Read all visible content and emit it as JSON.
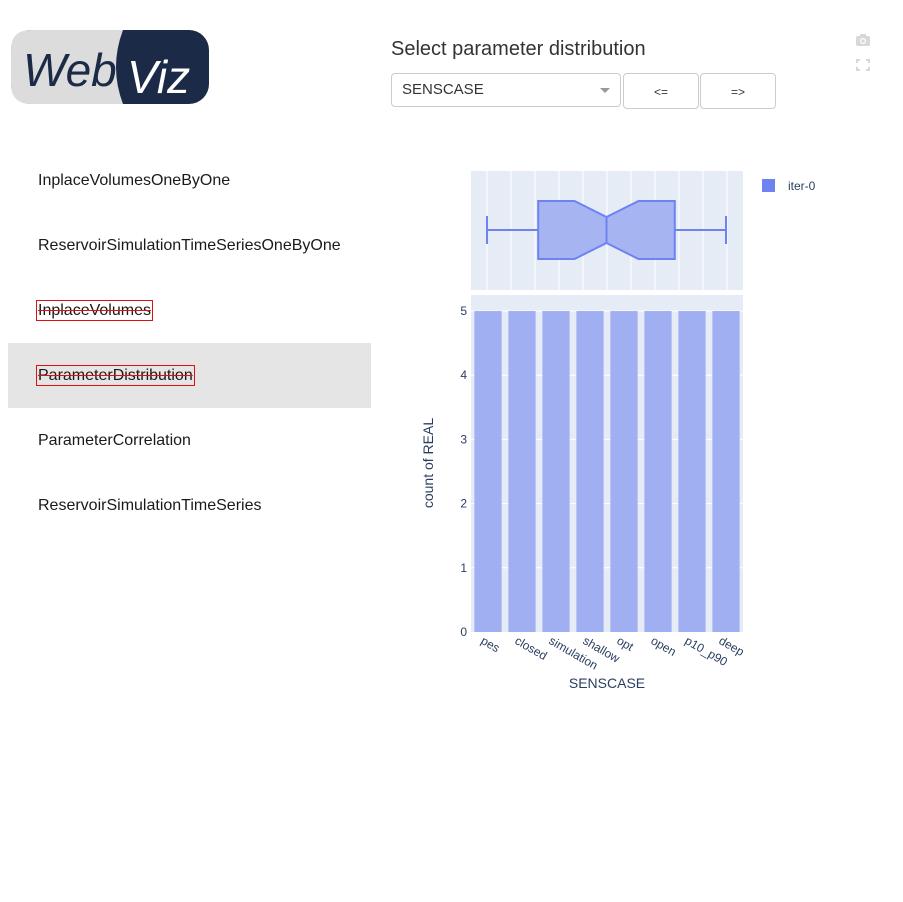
{
  "logo": {
    "text_web": "Web",
    "text_viz": "Viz"
  },
  "sidebar": {
    "items": [
      {
        "label": "InplaceVolumesOneByOne"
      },
      {
        "label": "ReservoirSimulationTimeSeriesOneByOne"
      },
      {
        "label": "InplaceVolumes"
      },
      {
        "label": "ParameterDistribution"
      },
      {
        "label": "ParameterCorrelation"
      },
      {
        "label": "ReservoirSimulationTimeSeries"
      }
    ]
  },
  "panel": {
    "title": "Select parameter distribution",
    "selected_parameter": "SENSCASE",
    "prev_label": "<=",
    "next_label": "=>"
  },
  "modebar": {
    "icons": [
      "camera-icon",
      "fullscreen-icon"
    ]
  },
  "chart_data": {
    "type": "bar",
    "categories": [
      "pes",
      "closed",
      "simulation",
      "shallow",
      "opt",
      "open",
      "p10_p90",
      "deep"
    ],
    "series": [
      {
        "name": "iter-0",
        "values": [
          5,
          5,
          5,
          5,
          5,
          5,
          5,
          5
        ]
      }
    ],
    "xlabel": "SENSCASE",
    "ylabel": "count of REAL",
    "ylim": [
      0,
      5.25
    ],
    "yticks": [
      0,
      1,
      2,
      3,
      4,
      5
    ],
    "legend": {
      "position": "top-right",
      "entries": [
        "iter-0"
      ]
    },
    "colors": {
      "bar": "#a0aef2",
      "box": "#6e82f0",
      "plot_bg": "#e5ecf6"
    },
    "box": {
      "type": "box",
      "orientation": "horizontal",
      "min": 0.5,
      "q1": 2,
      "median": 4,
      "q3": 6,
      "max": 7.5,
      "notched": true
    }
  }
}
